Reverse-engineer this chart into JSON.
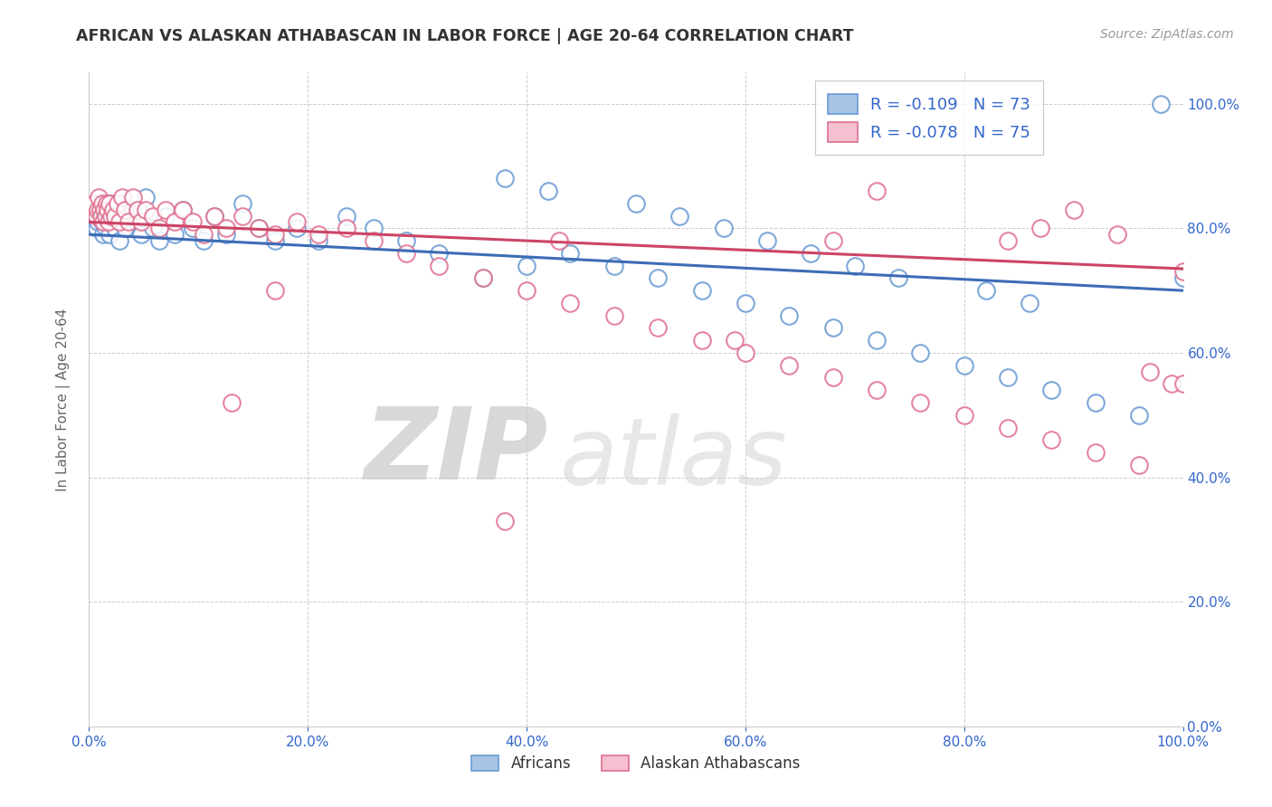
{
  "title": "AFRICAN VS ALASKAN ATHABASCAN IN LABOR FORCE | AGE 20-64 CORRELATION CHART",
  "source": "Source: ZipAtlas.com",
  "ylabel": "In Labor Force | Age 20-64",
  "xlim": [
    0.0,
    1.0
  ],
  "ylim": [
    0.0,
    1.05
  ],
  "xticks": [
    0.0,
    0.2,
    0.4,
    0.6,
    0.8,
    1.0
  ],
  "yticks": [
    0.0,
    0.2,
    0.4,
    0.6,
    0.8,
    1.0
  ],
  "xtick_labels": [
    "0.0%",
    "20.0%",
    "40.0%",
    "60.0%",
    "80.0%",
    "100.0%"
  ],
  "ytick_labels": [
    "0.0%",
    "20.0%",
    "40.0%",
    "60.0%",
    "80.0%",
    "100.0%"
  ],
  "africans_R": -0.109,
  "africans_N": 73,
  "athabascan_R": -0.078,
  "athabascan_N": 75,
  "africans_marker_color": "#a8c4e5",
  "africans_edge_color": "#6899d4",
  "athabascan_marker_color": "#f5c0d0",
  "athabascan_edge_color": "#e07090",
  "africans_line_color": "#3d6cb5",
  "athabascan_line_color": "#cc4466",
  "africans_trend_y0": 0.79,
  "africans_trend_y1": 0.7,
  "athabascan_trend_y0": 0.81,
  "athabascan_trend_y1": 0.735,
  "watermark_zip": "ZIP",
  "watermark_atlas": "atlas",
  "background_color": "#ffffff",
  "grid_color": "#cccccc",
  "title_color": "#333333",
  "source_color": "#999999",
  "tick_color": "#3366cc",
  "label_color": "#666666",
  "legend_label_color": "#3366cc",
  "africans_x": [
    0.005,
    0.007,
    0.008,
    0.009,
    0.01,
    0.011,
    0.012,
    0.013,
    0.014,
    0.015,
    0.016,
    0.017,
    0.018,
    0.019,
    0.02,
    0.022,
    0.024,
    0.026,
    0.028,
    0.03,
    0.033,
    0.036,
    0.04,
    0.044,
    0.048,
    0.052,
    0.058,
    0.064,
    0.07,
    0.078,
    0.086,
    0.095,
    0.105,
    0.115,
    0.125,
    0.14,
    0.155,
    0.17,
    0.19,
    0.21,
    0.235,
    0.26,
    0.29,
    0.32,
    0.36,
    0.4,
    0.44,
    0.48,
    0.52,
    0.56,
    0.6,
    0.64,
    0.68,
    0.72,
    0.76,
    0.8,
    0.84,
    0.88,
    0.92,
    0.96,
    0.38,
    0.42,
    0.5,
    0.54,
    0.58,
    0.62,
    0.66,
    0.7,
    0.74,
    0.82,
    0.86,
    0.98,
    1.0
  ],
  "africans_y": [
    0.82,
    0.8,
    0.81,
    0.83,
    0.84,
    0.82,
    0.81,
    0.79,
    0.83,
    0.8,
    0.82,
    0.81,
    0.83,
    0.79,
    0.84,
    0.83,
    0.8,
    0.82,
    0.78,
    0.84,
    0.8,
    0.82,
    0.83,
    0.81,
    0.79,
    0.85,
    0.8,
    0.78,
    0.82,
    0.79,
    0.83,
    0.8,
    0.78,
    0.82,
    0.79,
    0.84,
    0.8,
    0.78,
    0.8,
    0.78,
    0.82,
    0.8,
    0.78,
    0.76,
    0.72,
    0.74,
    0.76,
    0.74,
    0.72,
    0.7,
    0.68,
    0.66,
    0.64,
    0.62,
    0.6,
    0.58,
    0.56,
    0.54,
    0.52,
    0.5,
    0.88,
    0.86,
    0.84,
    0.82,
    0.8,
    0.78,
    0.76,
    0.74,
    0.72,
    0.7,
    0.68,
    1.0,
    0.72
  ],
  "athabascan_x": [
    0.005,
    0.007,
    0.008,
    0.009,
    0.01,
    0.011,
    0.012,
    0.013,
    0.014,
    0.015,
    0.016,
    0.017,
    0.018,
    0.019,
    0.02,
    0.022,
    0.024,
    0.026,
    0.028,
    0.03,
    0.033,
    0.036,
    0.04,
    0.044,
    0.048,
    0.052,
    0.058,
    0.064,
    0.07,
    0.078,
    0.086,
    0.095,
    0.105,
    0.115,
    0.125,
    0.14,
    0.155,
    0.17,
    0.19,
    0.21,
    0.235,
    0.26,
    0.29,
    0.32,
    0.36,
    0.4,
    0.44,
    0.48,
    0.52,
    0.56,
    0.6,
    0.64,
    0.68,
    0.72,
    0.76,
    0.8,
    0.84,
    0.88,
    0.92,
    0.96,
    0.38,
    0.13,
    0.17,
    0.43,
    0.59,
    0.68,
    0.72,
    0.84,
    0.87,
    0.9,
    0.94,
    0.97,
    0.99,
    1.0,
    1.0
  ],
  "athabascan_y": [
    0.84,
    0.82,
    0.83,
    0.85,
    0.83,
    0.82,
    0.84,
    0.81,
    0.83,
    0.82,
    0.84,
    0.83,
    0.81,
    0.84,
    0.82,
    0.83,
    0.82,
    0.84,
    0.81,
    0.85,
    0.83,
    0.81,
    0.85,
    0.83,
    0.81,
    0.83,
    0.82,
    0.8,
    0.83,
    0.81,
    0.83,
    0.81,
    0.79,
    0.82,
    0.8,
    0.82,
    0.8,
    0.79,
    0.81,
    0.79,
    0.8,
    0.78,
    0.76,
    0.74,
    0.72,
    0.7,
    0.68,
    0.66,
    0.64,
    0.62,
    0.6,
    0.58,
    0.56,
    0.54,
    0.52,
    0.5,
    0.48,
    0.46,
    0.44,
    0.42,
    0.33,
    0.52,
    0.7,
    0.78,
    0.62,
    0.78,
    0.86,
    0.78,
    0.8,
    0.83,
    0.79,
    0.57,
    0.55,
    0.55,
    0.73
  ]
}
